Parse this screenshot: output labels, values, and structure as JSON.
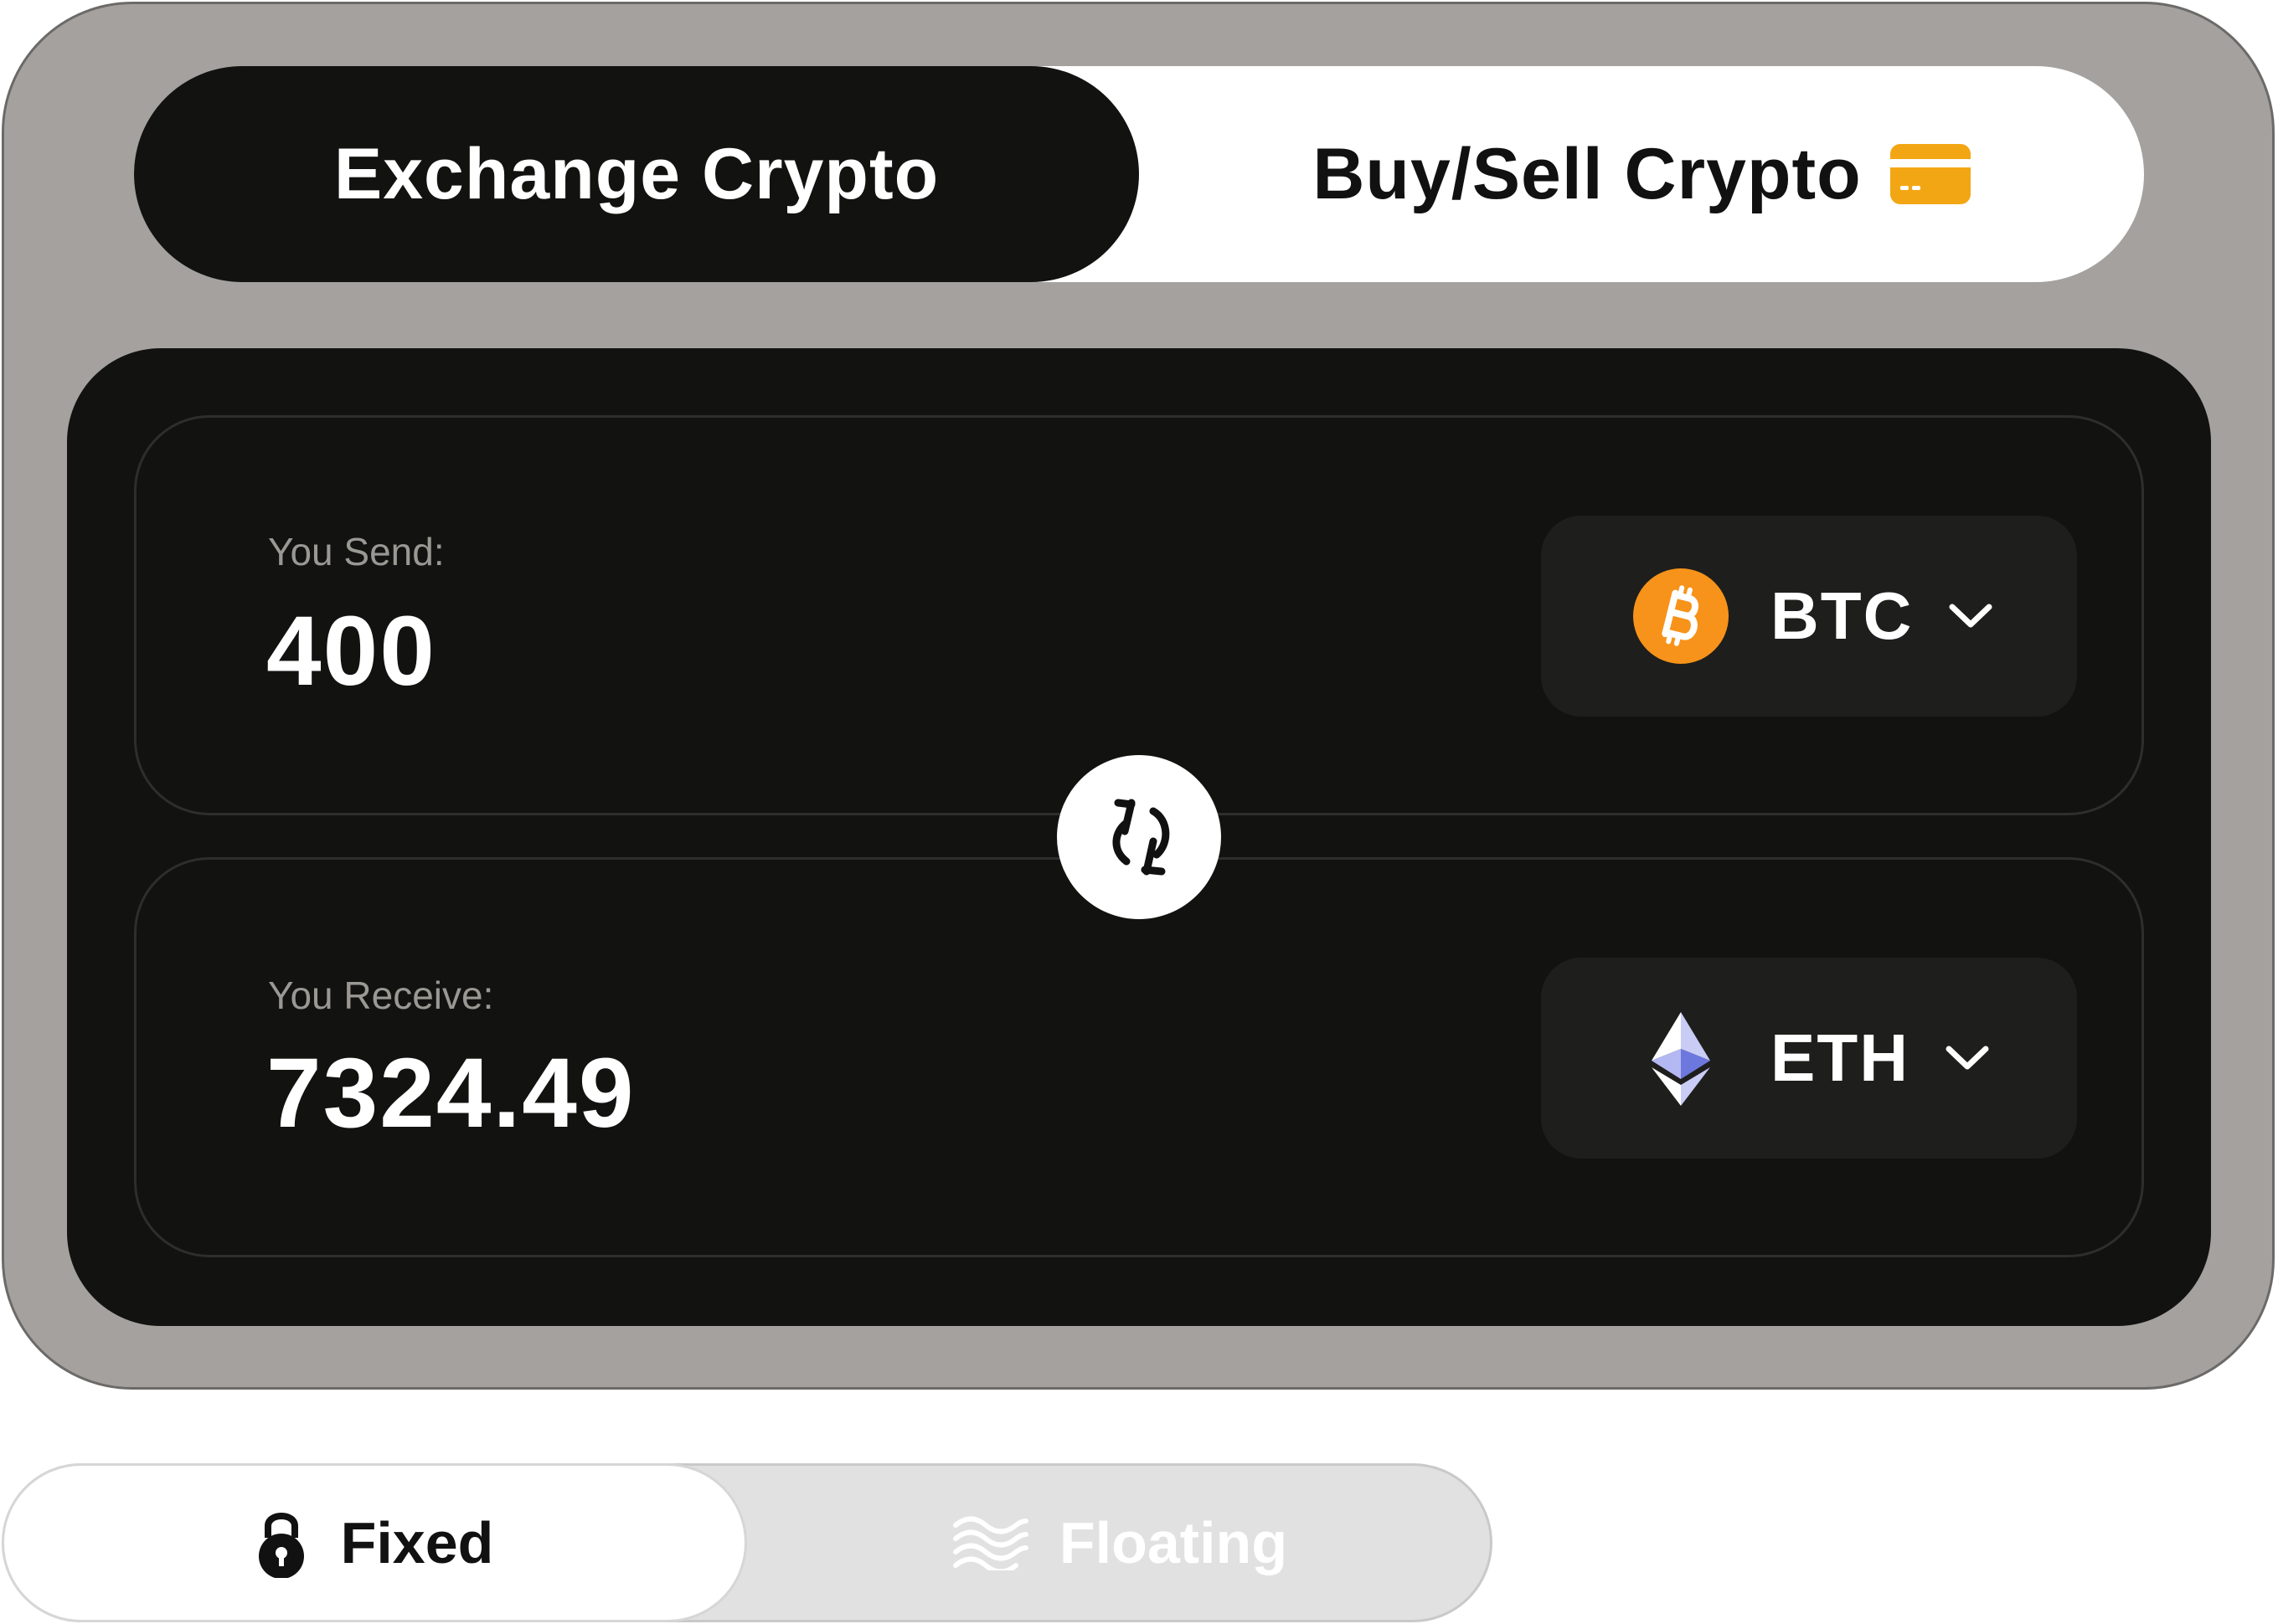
{
  "tabs": {
    "exchange_label": "Exchange Crypto",
    "buysell_label": "Buy/Sell Crypto",
    "active": "Exchange Crypto"
  },
  "send": {
    "label": "You Send:",
    "amount": "400",
    "currency": "BTC",
    "icon": "bitcoin-icon"
  },
  "receive": {
    "label": "You Receive:",
    "amount": "7324.49",
    "currency": "ETH",
    "icon": "ethereum-icon"
  },
  "rate_mode": {
    "fixed_label": "Fixed",
    "floating_label": "Floating",
    "selected": "Fixed"
  },
  "colors": {
    "panel": "#a4a19e",
    "dark": "#121210",
    "accent_card": "#f3a614",
    "bitcoin": "#f7931a"
  }
}
